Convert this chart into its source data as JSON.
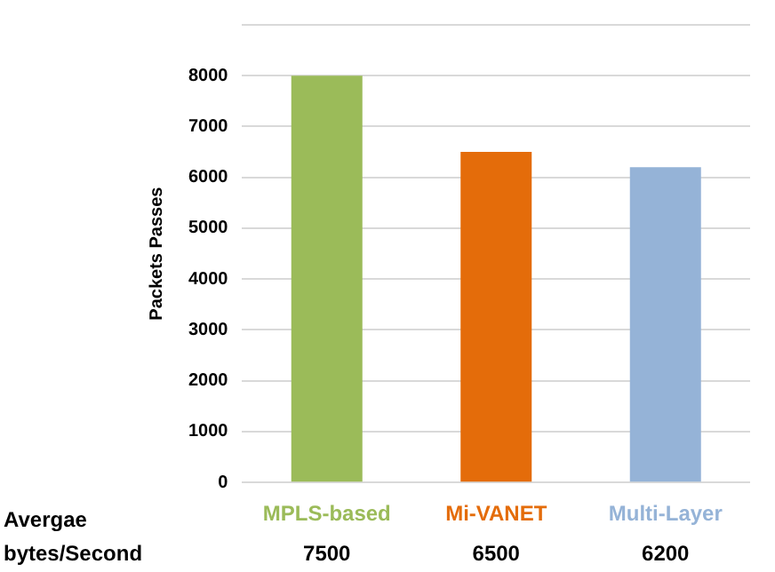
{
  "chart_data": {
    "type": "bar",
    "ylabel": "Packets Passes",
    "categories": [
      "MPLS-based",
      "Mi-VANET",
      "Multi-Layer"
    ],
    "values": [
      8000,
      6500,
      6200
    ],
    "colors": [
      "#9bbb59",
      "#e46c0a",
      "#95b3d7"
    ],
    "annotations": [
      "Avergae bytes/Second",
      "7500",
      "6500",
      "6200"
    ],
    "ylim": [
      0,
      9000
    ],
    "yticks": [
      0,
      1000,
      2000,
      3000,
      4000,
      5000,
      6000,
      7000,
      8000,
      {
        "value": 9000,
        "label": null
      }
    ],
    "grid": "y",
    "legend": false
  }
}
